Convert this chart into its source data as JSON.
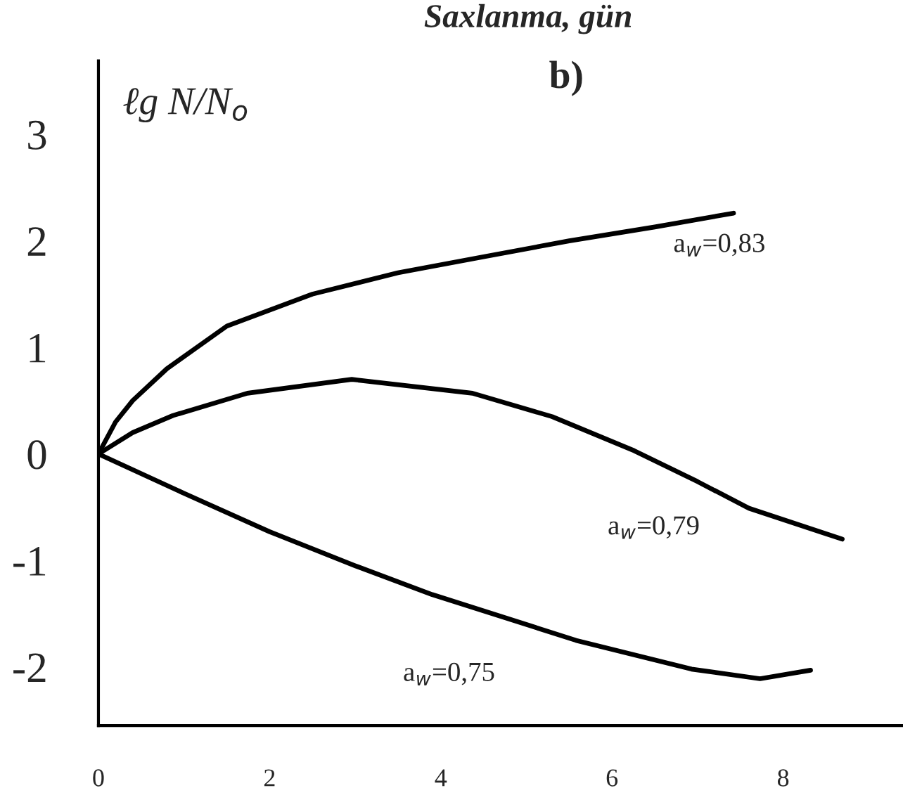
{
  "chart_data": {
    "type": "line",
    "xlabel": "Saxlanma, gün",
    "ylabel": "ℓg N/N$_{o}$",
    "xlim": [
      0,
      9.4
    ],
    "ylim": [
      -2.55,
      3.69
    ],
    "xticks": [
      0,
      2,
      4,
      6,
      8
    ],
    "yticks": [
      -2,
      -1,
      0,
      1,
      2,
      3
    ],
    "grid": false,
    "line_style": "solid",
    "marker": "none",
    "series": [
      {
        "name": "a$_{w}$=0,83",
        "color": "#000000",
        "x": [
          0,
          0.2,
          0.4,
          0.8,
          1.5,
          2.5,
          3.5,
          4.5,
          5.5,
          6.5,
          7.42
        ],
        "values": [
          0,
          0.3,
          0.5,
          0.8,
          1.2,
          1.5,
          1.7,
          1.85,
          2.0,
          2.13,
          2.26
        ]
      },
      {
        "name": "a$_{w}$=0,79",
        "color": "#000000",
        "x": [
          0,
          0.4,
          0.87,
          1.74,
          2.96,
          4.37,
          5.3,
          6.26,
          7.0,
          7.6,
          8.69
        ],
        "values": [
          0,
          0.2,
          0.36,
          0.57,
          0.7,
          0.57,
          0.35,
          0.03,
          -0.26,
          -0.51,
          -0.8
        ]
      },
      {
        "name": "a$_{w}$=0,75",
        "color": "#000000",
        "x": [
          0,
          1.0,
          2.0,
          3.0,
          3.9,
          5.58,
          6.93,
          7.73,
          8.32
        ],
        "values": [
          0,
          -0.37,
          -0.73,
          -1.05,
          -1.32,
          -1.75,
          -2.02,
          -2.11,
          -2.03
        ]
      }
    ],
    "annotations": [
      "b)"
    ]
  }
}
